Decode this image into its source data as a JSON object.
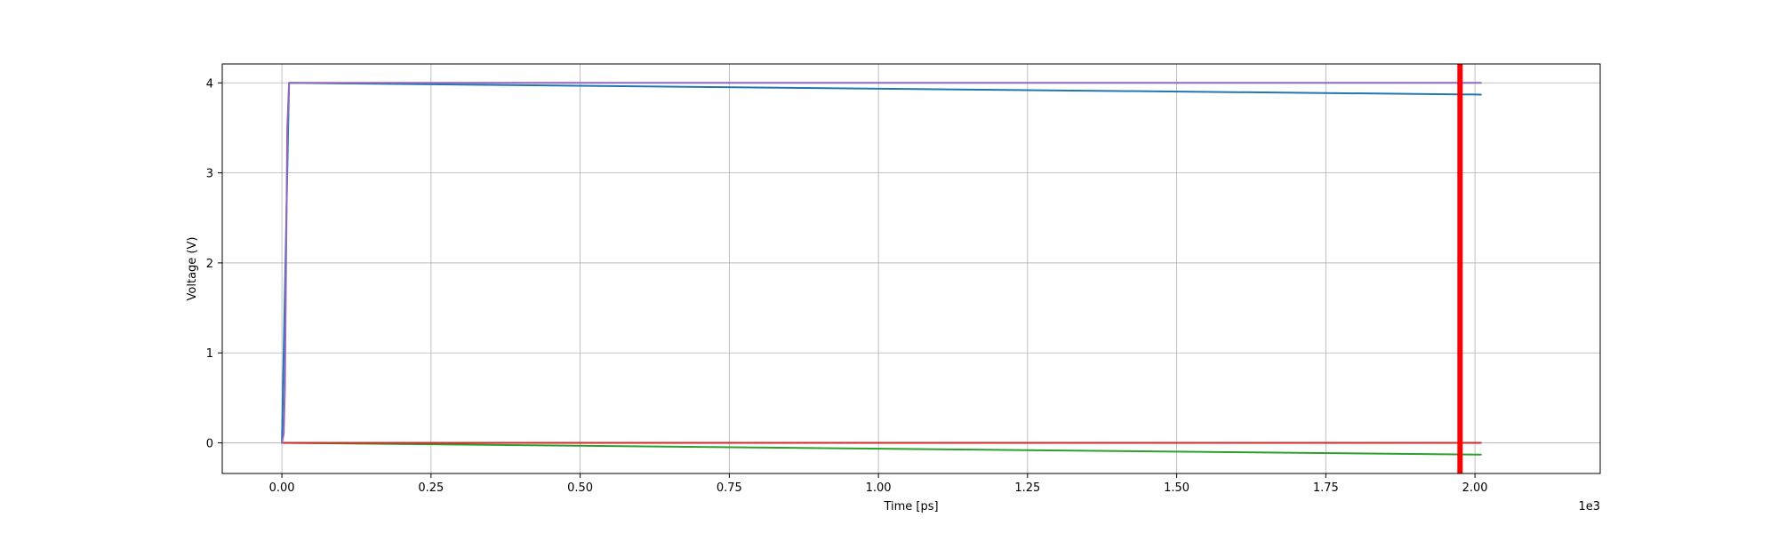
{
  "chart_data": {
    "type": "line",
    "xlabel": "Time [ps]",
    "ylabel": "Voltage (V)",
    "x_scale_label": "1e3",
    "xlim": [
      -0.1,
      2.21
    ],
    "ylim": [
      -0.34,
      4.21
    ],
    "x_ticks": [
      0.0,
      0.25,
      0.5,
      0.75,
      1.0,
      1.25,
      1.5,
      1.75,
      2.0
    ],
    "x_tick_labels": [
      "0.00",
      "0.25",
      "0.50",
      "0.75",
      "1.00",
      "1.25",
      "1.50",
      "1.75",
      "2.00"
    ],
    "y_ticks": [
      0,
      1,
      2,
      3,
      4
    ],
    "y_tick_labels": [
      "0",
      "1",
      "2",
      "3",
      "4"
    ],
    "grid": true,
    "series": [
      {
        "color": "#1f77b4",
        "x": [
          0.0,
          0.012,
          2.01
        ],
        "y": [
          0.0,
          4.0,
          3.87
        ]
      },
      {
        "color": "#9467bd",
        "x": [
          0.0,
          0.003,
          0.005,
          0.007,
          0.009,
          0.012,
          2.01
        ],
        "y": [
          0.0,
          0.1,
          0.6,
          2.0,
          3.5,
          4.0,
          4.0
        ]
      },
      {
        "color": "#2ca02c",
        "x": [
          0.0,
          2.01
        ],
        "y": [
          0.0,
          -0.13
        ]
      },
      {
        "color": "#d62728",
        "x": [
          0.0,
          2.01
        ],
        "y": [
          0.0,
          0.0
        ]
      }
    ],
    "vertical_marker": {
      "x": 1.975,
      "color": "#ff0000"
    }
  }
}
